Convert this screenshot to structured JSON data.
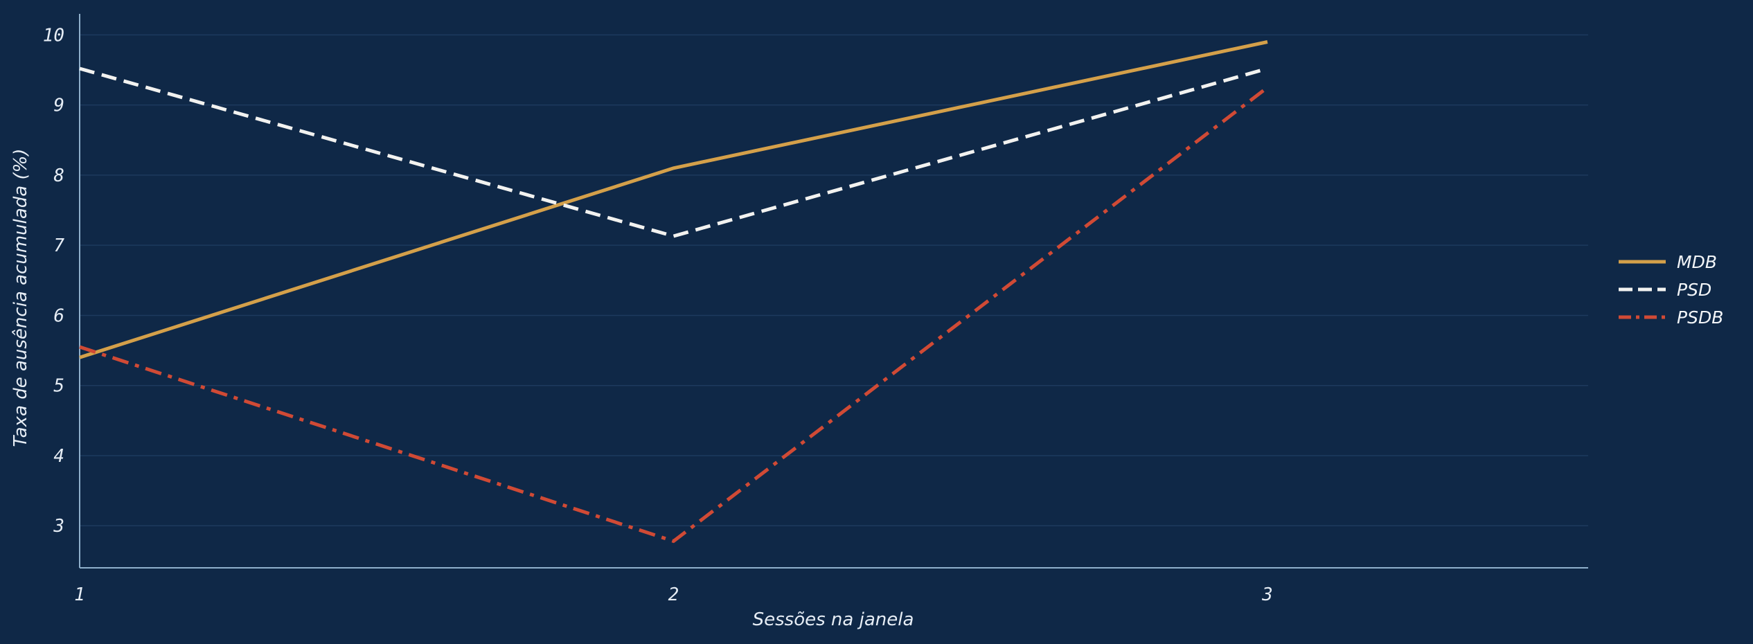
{
  "colors": {
    "background": "#0f2847",
    "grid": "#1d3a5e",
    "axis": "#8fb0cc",
    "text": "#e6edf5"
  },
  "chart_data": {
    "type": "line",
    "title": "",
    "xlabel": "Sessões na janela",
    "ylabel": "Taxa de ausência acumulada (%)",
    "x": [
      1,
      2,
      3
    ],
    "xlim": [
      1,
      3.54
    ],
    "ylim": [
      2.4,
      10.3
    ],
    "yticks": [
      3,
      4,
      5,
      6,
      7,
      8,
      9,
      10
    ],
    "grid": "horizontal",
    "legend_position": "right",
    "series": [
      {
        "name": "MDB",
        "values": [
          5.4,
          8.1,
          9.9
        ],
        "color": "#d4a04a",
        "dash": "solid"
      },
      {
        "name": "PSD",
        "values": [
          9.52,
          7.13,
          9.52
        ],
        "color": "#f2f2f0",
        "dash": "dashed"
      },
      {
        "name": "PSDB",
        "values": [
          5.55,
          2.78,
          9.25
        ],
        "color": "#d04a35",
        "dash": "dashdot"
      }
    ]
  }
}
